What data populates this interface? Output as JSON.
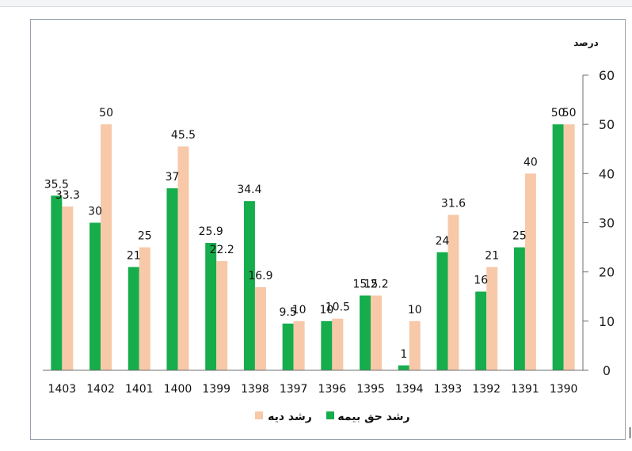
{
  "chart_data": {
    "type": "bar",
    "categories": [
      "1390",
      "1391",
      "1392",
      "1393",
      "1394",
      "1395",
      "1396",
      "1397",
      "1398",
      "1399",
      "1400",
      "1401",
      "1402",
      "1403"
    ],
    "series": [
      {
        "name": "رشد حق بیمه",
        "color": "#16ad4c",
        "values": [
          50,
          25,
          16,
          24,
          1,
          15.2,
          10,
          9.5,
          34.4,
          25.9,
          37,
          21,
          30,
          35.5
        ]
      },
      {
        "name": "رشد دیه",
        "color": "#f7c9a9",
        "values": [
          50,
          40,
          21,
          31.6,
          10,
          15.2,
          10.5,
          10,
          16.9,
          22.2,
          45.5,
          25,
          50,
          33.3
        ]
      }
    ],
    "y_unit": "درصد",
    "ylim": [
      0,
      60
    ],
    "yticks": [
      0,
      10,
      20,
      30,
      40,
      50,
      60
    ],
    "x_axis_order": "right-to-left",
    "legend_position": "bottom-center",
    "grid": false,
    "data_labels": true
  }
}
